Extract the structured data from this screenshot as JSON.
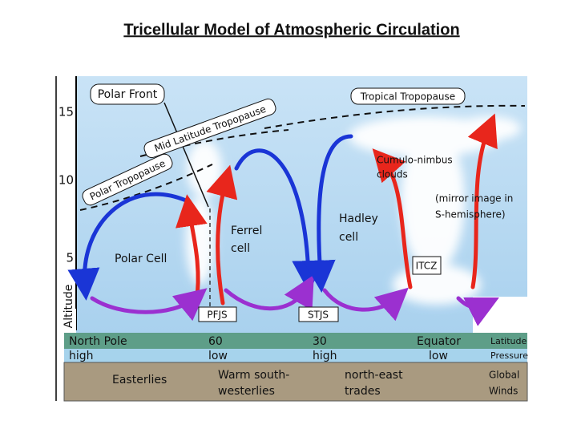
{
  "title": "Tricellular Model of Atmospheric Circulation",
  "axis": {
    "ticks": [
      15,
      10,
      5
    ],
    "label": "Altitude"
  },
  "labels": {
    "polar_front": "Polar Front",
    "mid_latitude_tropopause": "Mid Latitude Tropopause",
    "polar_tropopause": "Polar Tropopause",
    "tropical_tropopause": "Tropical Tropopause",
    "clouds": [
      "Cumulo-nimbus",
      "clouds"
    ],
    "mirror": [
      "(mirror image in",
      "S-hemisphere)"
    ],
    "polar_cell": "Polar Cell",
    "ferrel_cell": [
      "Ferrel",
      "cell"
    ],
    "hadley_cell": [
      "Hadley",
      "cell"
    ],
    "itcz": "ITCZ",
    "pfjs": "PFJS",
    "stjs": "STJS"
  },
  "rows": {
    "latitude": [
      "North Pole",
      "60",
      "30",
      "Equator",
      "Latitude"
    ],
    "pressure": [
      "high",
      "low",
      "high",
      "low",
      "Pressure"
    ],
    "winds": [
      "Easterlies",
      [
        "Warm south-",
        "westerlies"
      ],
      [
        "north-east",
        "trades"
      ],
      [
        "Global",
        "Winds"
      ]
    ]
  }
}
